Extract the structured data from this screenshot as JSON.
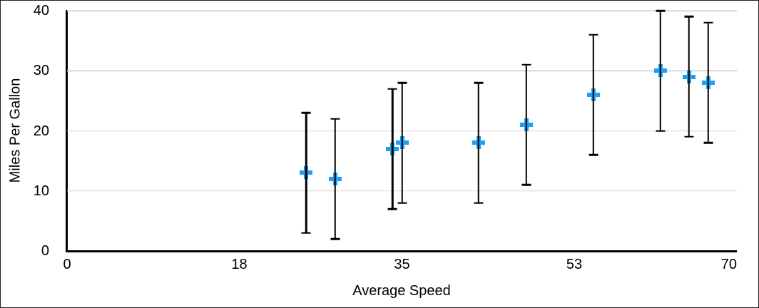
{
  "chart_data": {
    "type": "scatter",
    "xlabel": "Average Speed",
    "ylabel": "Miles Per Gallon",
    "xlim": [
      0,
      70
    ],
    "ylim": [
      0,
      40
    ],
    "x_ticks": [
      0,
      18,
      35,
      53,
      70
    ],
    "y_ticks": [
      0,
      10,
      20,
      30,
      40
    ],
    "grid": "horizontal-gridlines-at-y-ticks",
    "legend": "none",
    "marker_style": "plus",
    "series": [
      {
        "name": "Miles Per Gallon",
        "points": [
          {
            "x": 25,
            "y": 13,
            "err": 10,
            "err_low": 3,
            "err_high": 23
          },
          {
            "x": 28,
            "y": 12,
            "err": 10,
            "err_low": 2,
            "err_high": 22
          },
          {
            "x": 34,
            "y": 17,
            "err": 10,
            "err_low": 7,
            "err_high": 27
          },
          {
            "x": 35,
            "y": 18,
            "err": 10,
            "err_low": 8,
            "err_high": 28
          },
          {
            "x": 43,
            "y": 18,
            "err": 10,
            "err_low": 8,
            "err_high": 28
          },
          {
            "x": 48,
            "y": 21,
            "err": 10,
            "err_low": 11,
            "err_high": 31
          },
          {
            "x": 55,
            "y": 26,
            "err": 10,
            "err_low": 16,
            "err_high": 36
          },
          {
            "x": 62,
            "y": 30,
            "err": 10,
            "err_low": 20,
            "err_high": 40
          },
          {
            "x": 65,
            "y": 29,
            "err": 10,
            "err_low": 19,
            "err_high": 39
          },
          {
            "x": 67,
            "y": 28,
            "err": 10,
            "err_low": 18,
            "err_high": 38
          }
        ]
      }
    ],
    "colors": {
      "marker": "#1E9EF4",
      "error_bar": "#000000",
      "gridline": "#D8D8D8",
      "axis": "#000000",
      "text": "#000000",
      "background": "#FFFFFF",
      "frame_border": "#222222"
    }
  }
}
